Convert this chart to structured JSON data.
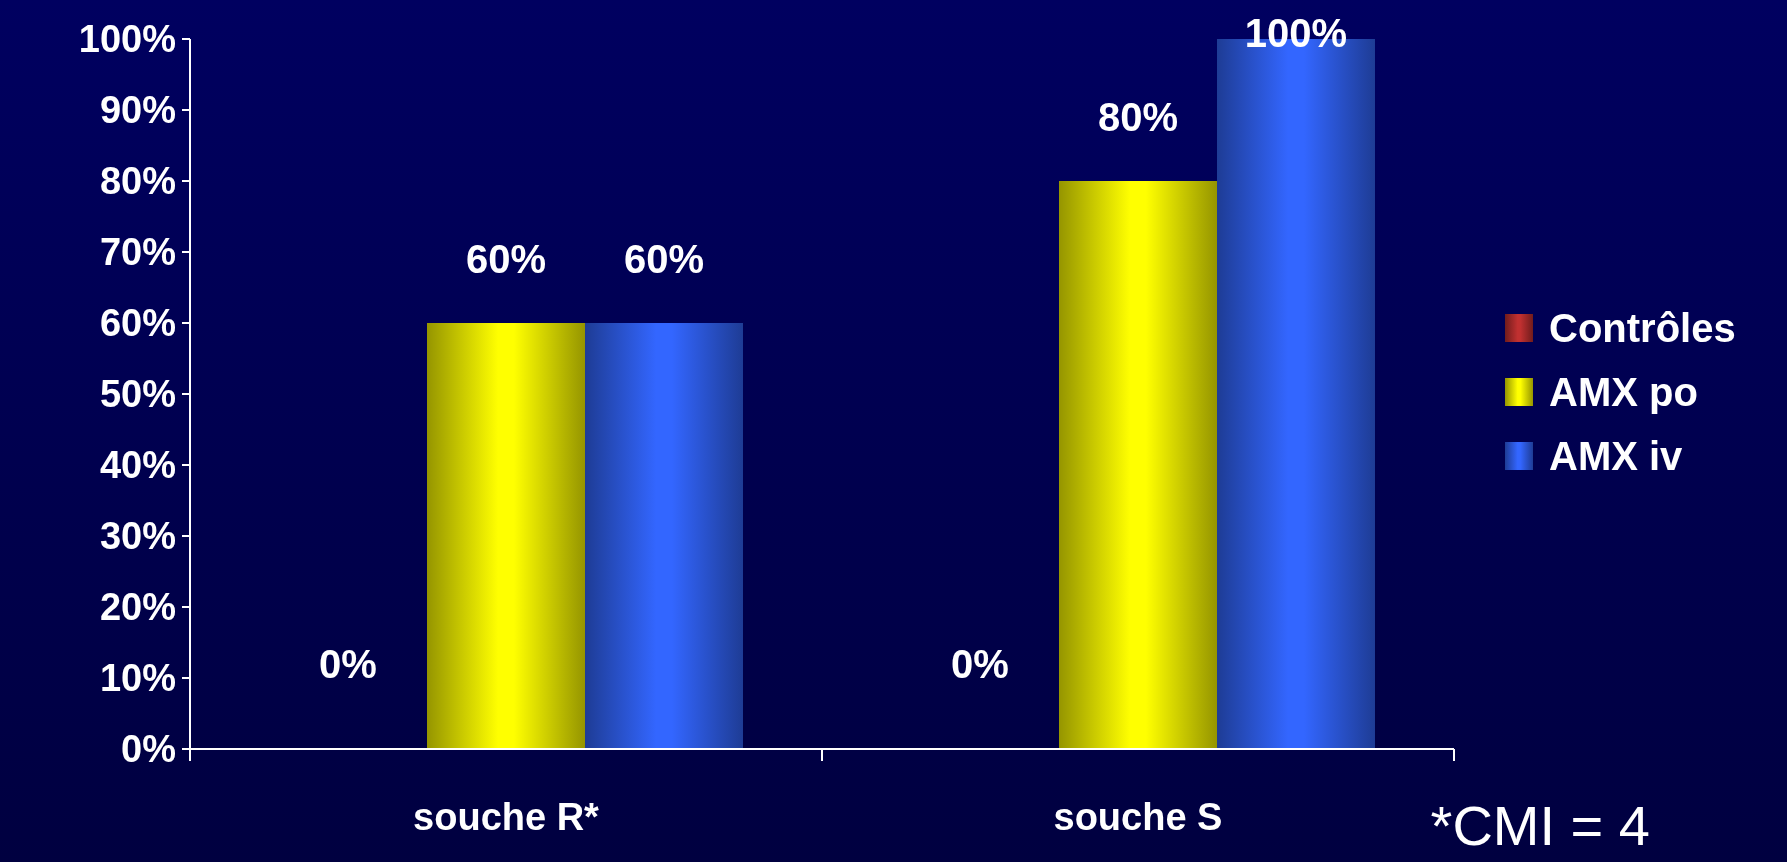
{
  "chart_data": {
    "type": "bar",
    "categories": [
      "souche R*",
      "souche S"
    ],
    "series": [
      {
        "name": "Contrôles",
        "color": "#c03030",
        "values": [
          0,
          0
        ]
      },
      {
        "name": "AMX po",
        "color": "#ffff00",
        "values": [
          60,
          80
        ]
      },
      {
        "name": "AMX iv",
        "color": "#3366ff",
        "values": [
          60,
          100
        ]
      }
    ],
    "ylim": [
      0,
      100
    ],
    "yticks": [
      {
        "value": 0,
        "label": "0%"
      },
      {
        "value": 10,
        "label": "10%"
      },
      {
        "value": 20,
        "label": "20%"
      },
      {
        "value": 30,
        "label": "30%"
      },
      {
        "value": 40,
        "label": "40%"
      },
      {
        "value": 50,
        "label": "50%"
      },
      {
        "value": 60,
        "label": "60%"
      },
      {
        "value": 70,
        "label": "70%"
      },
      {
        "value": 80,
        "label": "80%"
      },
      {
        "value": 90,
        "label": "90%"
      },
      {
        "value": 100,
        "label": "100%"
      }
    ],
    "value_labels": [
      [
        "0%",
        "0%"
      ],
      [
        "60%",
        "80%"
      ],
      [
        "60%",
        "100%"
      ]
    ],
    "legend": "right",
    "grid": false,
    "annotations": [
      "*CMI = 4"
    ]
  }
}
